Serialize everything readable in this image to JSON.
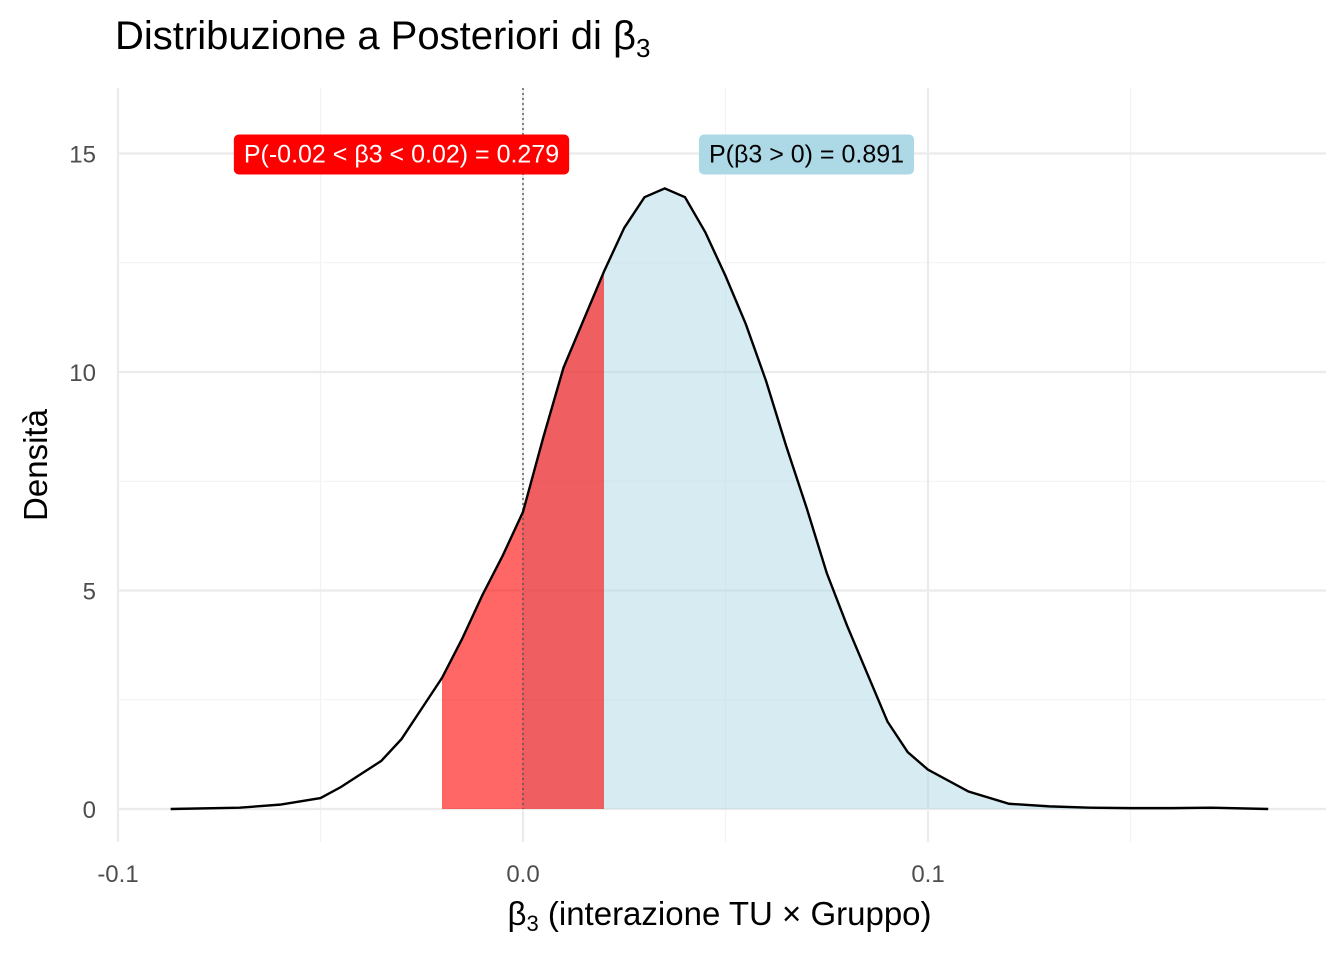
{
  "title": "Distribuzione a Posteriori di β",
  "title_sub": "3",
  "xlabel_sym": "β",
  "xlabel_sub": "3",
  "xlabel_rest": " (interazione TU × Gruppo)",
  "ylabel": "Densità",
  "chart_data": {
    "type": "area",
    "xlim": [
      -0.1,
      0.19
    ],
    "ylim": [
      0,
      16
    ],
    "grid": true,
    "x_ticks": [
      -0.1,
      0.0,
      0.1
    ],
    "x_tick_labels": [
      "-0.1",
      "0.0",
      "0.1"
    ],
    "y_ticks": [
      0,
      5,
      10,
      15
    ],
    "y_tick_labels": [
      "0",
      "5",
      "10",
      "15"
    ],
    "reference_line_x": 0,
    "density": {
      "x": [
        -0.087,
        -0.07,
        -0.06,
        -0.05,
        -0.045,
        -0.04,
        -0.035,
        -0.03,
        -0.025,
        -0.02,
        -0.015,
        -0.01,
        -0.005,
        0.0,
        0.005,
        0.01,
        0.015,
        0.02,
        0.025,
        0.03,
        0.035,
        0.04,
        0.045,
        0.05,
        0.055,
        0.06,
        0.065,
        0.07,
        0.075,
        0.08,
        0.085,
        0.09,
        0.095,
        0.1,
        0.11,
        0.12,
        0.13,
        0.14,
        0.15,
        0.16,
        0.17,
        0.184
      ],
      "y": [
        0.0,
        0.03,
        0.1,
        0.25,
        0.5,
        0.8,
        1.1,
        1.6,
        2.3,
        3.0,
        3.9,
        4.9,
        5.8,
        6.8,
        8.5,
        10.1,
        11.2,
        12.3,
        13.3,
        14.0,
        14.2,
        14.0,
        13.2,
        12.2,
        11.1,
        9.8,
        8.3,
        6.9,
        5.4,
        4.2,
        3.1,
        2.0,
        1.3,
        0.9,
        0.4,
        0.12,
        0.06,
        0.03,
        0.02,
        0.02,
        0.03,
        0.0
      ]
    },
    "regions": [
      {
        "label": "P(-0.02 < β3 < 0.02) = 0.279",
        "from": -0.02,
        "to": 0.02,
        "color": "#ff0000",
        "text_color": "#ffffff",
        "label_x": -0.03,
        "label_y": 15
      },
      {
        "label": "P(β3 > 0) = 0.891",
        "from": 0.0,
        "to": 0.184,
        "color": "#add8e6",
        "text_color": "#000000",
        "label_x": 0.07,
        "label_y": 15
      }
    ]
  }
}
